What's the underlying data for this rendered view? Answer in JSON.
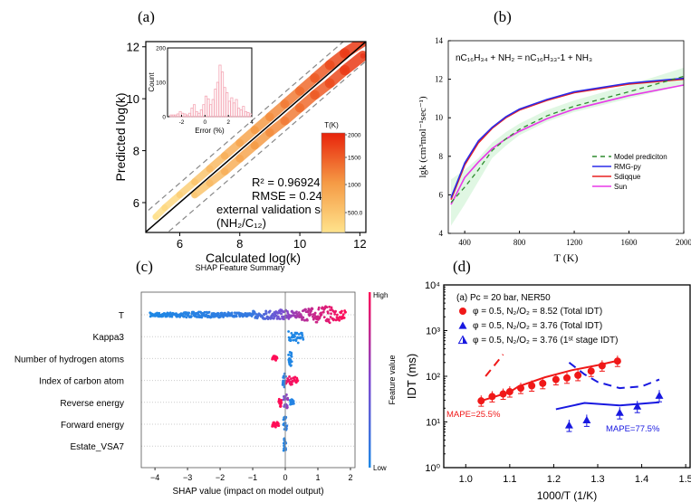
{
  "panels": {
    "a": "(a)",
    "b": "(b)",
    "c": "(c)",
    "d": "(d)"
  },
  "chart_data": [
    {
      "type": "scatter",
      "xlabel": "Calculated log(k)",
      "ylabel": "Predicted log(k)",
      "xlim": [
        4.87,
        12.2
      ],
      "ylim": [
        4.85,
        12.2
      ],
      "xticks": [
        6,
        8,
        10,
        12
      ],
      "yticks": [
        6,
        8,
        10,
        12
      ],
      "parity_line": true,
      "error_bounds_dashed": 0.75,
      "series": [
        {
          "x": [
            5.2,
            5.5,
            6,
            6.5,
            7,
            7.5,
            8,
            8.5,
            9,
            9.5,
            10,
            10.5,
            11,
            11.5,
            12.1
          ],
          "y": [
            5.45,
            5.8,
            6.3,
            6.8,
            7.3,
            7.8,
            8.3,
            8.8,
            9.3,
            9.8,
            10.3,
            10.8,
            11.3,
            11.75,
            12.2
          ]
        },
        {
          "x": [
            6.5,
            7,
            7.5,
            8,
            8.5,
            9,
            9.5,
            10,
            10.5,
            11,
            11.5,
            12.1
          ],
          "y": [
            6.3,
            6.75,
            7.2,
            7.7,
            8.2,
            8.7,
            9.15,
            9.65,
            10.15,
            10.6,
            11.1,
            11.65
          ]
        }
      ],
      "annotations": [
        "R² = 0.96924",
        "RMSE = 0.248",
        "external validation set",
        "(NH₂/C₁₂)"
      ],
      "colorbar": {
        "label": "T(K)",
        "ticks": [
          "2000",
          "1500",
          "1000",
          "500.0"
        ],
        "range": [
          300,
          2000
        ],
        "colors": [
          "#FFE38C",
          "#E8230B"
        ]
      },
      "inset": {
        "type": "bar",
        "xlabel": "Error (%)",
        "ylabel": "Count",
        "xlim": [
          -3.2,
          4
        ],
        "ylim": [
          0,
          200
        ],
        "xticks": [
          -2,
          0,
          2,
          4
        ],
        "yticks": [
          0,
          100,
          200
        ],
        "bin_width": 0.2,
        "bins": [
          -3,
          -2.8,
          -2.6,
          -2.4,
          -2.2,
          -2,
          -1.8,
          -1.6,
          -1.4,
          -1.2,
          -1,
          -0.8,
          -0.6,
          -0.4,
          -0.2,
          0,
          0.2,
          0.4,
          0.6,
          0.8,
          1,
          1.2,
          1.4,
          1.6,
          1.8,
          2,
          2.2,
          2.4,
          2.6,
          2.8,
          3,
          3.2,
          3.4,
          3.6,
          3.8
        ],
        "counts": [
          5,
          5,
          5,
          8,
          15,
          10,
          8,
          5,
          10,
          25,
          35,
          15,
          10,
          20,
          35,
          60,
          52,
          35,
          50,
          80,
          100,
          150,
          130,
          85,
          70,
          45,
          55,
          40,
          50,
          25,
          20,
          30,
          15,
          12,
          8
        ],
        "color": "#F4A6B4"
      }
    },
    {
      "type": "line",
      "title": "nC₁₆H₃₄ + NH₂ = nC₁₆H₃₃-1 + NH₃",
      "xlabel": "T (K)",
      "ylabel": "lgk (cm³mol⁻¹sec⁻¹)",
      "xlim": [
        280,
        2000
      ],
      "ylim": [
        4,
        14
      ],
      "xticks": [
        400,
        800,
        1200,
        1600,
        2000
      ],
      "yticks": [
        4,
        6,
        8,
        10,
        12,
        14
      ],
      "legend": "center-right",
      "x": [
        300,
        400,
        500,
        600,
        700,
        800,
        1000,
        1200,
        1600,
        2000
      ],
      "series": [
        {
          "name": "Model prediciton",
          "style": "dashed",
          "color": "#2E8B2E",
          "values": [
            5.6,
            6.4,
            7.3,
            8.3,
            8.9,
            9.4,
            10.1,
            10.6,
            11.35,
            12.15
          ],
          "band": [
            1.2,
            0.9,
            0.6,
            0.4,
            0.35,
            0.3,
            0.3,
            0.3,
            0.35,
            0.45
          ]
        },
        {
          "name": "RMG-py",
          "style": "solid",
          "color": "#2B2BE8",
          "values": [
            5.85,
            7.65,
            8.8,
            9.5,
            10.05,
            10.45,
            10.95,
            11.35,
            11.8,
            12.05
          ]
        },
        {
          "name": "Sdiqque",
          "style": "solid",
          "color": "#E82020",
          "values": [
            5.75,
            7.55,
            8.7,
            9.45,
            10.0,
            10.4,
            10.9,
            11.3,
            11.75,
            12.0
          ]
        },
        {
          "name": "Sun",
          "style": "solid",
          "color": "#E838E8",
          "values": [
            5.5,
            6.9,
            7.7,
            8.4,
            8.9,
            9.3,
            9.95,
            10.45,
            11.15,
            11.7
          ]
        }
      ]
    },
    {
      "type": "scatter",
      "title": "SHAP Feature Summary",
      "xlabel": "SHAP value (impact on model output)",
      "xlim": [
        -4.42,
        2.14
      ],
      "xticks": [
        -4,
        -3,
        -2,
        -1,
        0,
        1,
        2
      ],
      "colorbar": {
        "label": "Feature value",
        "high": "High",
        "low": "Low",
        "colors": [
          "#1E88E5",
          "#7E4AD0",
          "#FF0D57"
        ]
      },
      "features": [
        {
          "name": "T",
          "clusters": [
            {
              "shap": [
                -4.15,
                -1.0
              ],
              "feature_value": [
                0.0,
                0.12
              ],
              "spread": 0.28
            },
            {
              "shap": [
                -1.0,
                0.5
              ],
              "feature_value": [
                0.12,
                0.7
              ],
              "spread": 0.5
            },
            {
              "shap": [
                0.5,
                1.85
              ],
              "feature_value": [
                0.7,
                1.0
              ],
              "spread": 0.85
            }
          ]
        },
        {
          "name": "Kappa3",
          "clusters": [
            {
              "shap": [
                0.1,
                0.55
              ],
              "feature_value": [
                0.0,
                0.02
              ],
              "spread": 0.75
            }
          ]
        },
        {
          "name": "Number of hydrogen atoms",
          "clusters": [
            {
              "shap": [
                -0.4,
                -0.25
              ],
              "feature_value": [
                1.0,
                1.0
              ],
              "spread": 0.3
            },
            {
              "shap": [
                0.1,
                0.2
              ],
              "feature_value": [
                0.0,
                0.02
              ],
              "spread": 0.85
            }
          ]
        },
        {
          "name": "Index of carbon atom",
          "clusters": [
            {
              "shap": [
                -0.08,
                0.02
              ],
              "feature_value": [
                0.05,
                0.1
              ],
              "spread": 0.75
            },
            {
              "shap": [
                0.02,
                0.38
              ],
              "feature_value": [
                0.9,
                1.0
              ],
              "spread": 0.45
            }
          ]
        },
        {
          "name": "Reverse energy",
          "clusters": [
            {
              "shap": [
                -0.2,
                -0.12
              ],
              "feature_value": [
                1.0,
                1.0
              ],
              "spread": 0.5
            },
            {
              "shap": [
                -0.05,
                0.08
              ],
              "feature_value": [
                0.45,
                0.6
              ],
              "spread": 0.85
            },
            {
              "shap": [
                0.15,
                0.26
              ],
              "feature_value": [
                0.0,
                0.05
              ],
              "spread": 0.3
            }
          ]
        },
        {
          "name": "Forward energy",
          "clusters": [
            {
              "shap": [
                -0.4,
                -0.2
              ],
              "feature_value": [
                1.0,
                1.0
              ],
              "spread": 0.3
            },
            {
              "shap": [
                -0.06,
                0.05
              ],
              "feature_value": [
                0.02,
                0.08
              ],
              "spread": 0.85
            }
          ]
        },
        {
          "name": "Estate_VSA7",
          "clusters": [
            {
              "shap": [
                -0.05,
                0.02
              ],
              "feature_value": [
                0.02,
                0.06
              ],
              "spread": 0.9
            }
          ]
        }
      ]
    },
    {
      "type": "scatter",
      "xlabel": "1000/T (1/K)",
      "ylabel": "IDT (ms)",
      "xlim": [
        0.95,
        1.51
      ],
      "ylim": [
        1,
        10000
      ],
      "yscale": "log",
      "xticks": [
        "1.0",
        "1.1",
        "1.2",
        "1.3",
        "1.4",
        "1.5"
      ],
      "yticks": [
        "10⁰",
        "10¹",
        "10²",
        "10³",
        "10⁴"
      ],
      "legend": "top-left",
      "legend_title": "(a) Pc = 20 bar, NER50",
      "series": [
        {
          "name": "φ = 0.5, N₂/O₂ = 8.52 (Total IDT)",
          "marker": "circle",
          "color": "#F01818",
          "x": [
            1.035,
            1.06,
            1.085,
            1.1,
            1.125,
            1.15,
            1.175,
            1.205,
            1.23,
            1.255,
            1.285,
            1.31,
            1.345
          ],
          "y": [
            29,
            36,
            41,
            46,
            55,
            62,
            70,
            85,
            92,
            105,
            130,
            170,
            215
          ]
        },
        {
          "name": "φ = 0.5, N₂/O₂ = 3.76 (Total IDT)",
          "marker": "triangle",
          "color": "#1818E0",
          "x": [
            1.235,
            1.275,
            1.35,
            1.39,
            1.44
          ],
          "y": [
            8.5,
            11,
            16,
            22,
            38
          ]
        },
        {
          "name": "φ = 0.5, N₂/O₂ = 3.76 (1ˢᵗ stage IDT)",
          "marker": "half-triangle",
          "color": "#1818E0",
          "x": [],
          "y": []
        }
      ],
      "model_lines": [
        {
          "color": "#F01818",
          "style": "solid",
          "x": [
            1.04,
            1.1,
            1.12,
            1.18,
            1.24,
            1.3,
            1.35
          ],
          "y": [
            30,
            45,
            60,
            95,
            135,
            175,
            225
          ]
        },
        {
          "color": "#F01818",
          "style": "dashed",
          "x": [
            1.045,
            1.085
          ],
          "y": [
            100,
            300
          ]
        },
        {
          "color": "#1818E0",
          "style": "solid",
          "x": [
            1.205,
            1.27,
            1.35,
            1.44
          ],
          "y": [
            19,
            26,
            23,
            27
          ]
        },
        {
          "color": "#1818E0",
          "style": "dashed",
          "x": [
            1.235,
            1.27,
            1.3,
            1.35,
            1.4,
            1.44
          ],
          "y": [
            200,
            110,
            75,
            55,
            60,
            85
          ]
        }
      ],
      "annotations": [
        {
          "text": "MAPE=25.5%",
          "color": "#F01818"
        },
        {
          "text": "MAPE=77.5%",
          "color": "#1818E0"
        }
      ]
    }
  ]
}
